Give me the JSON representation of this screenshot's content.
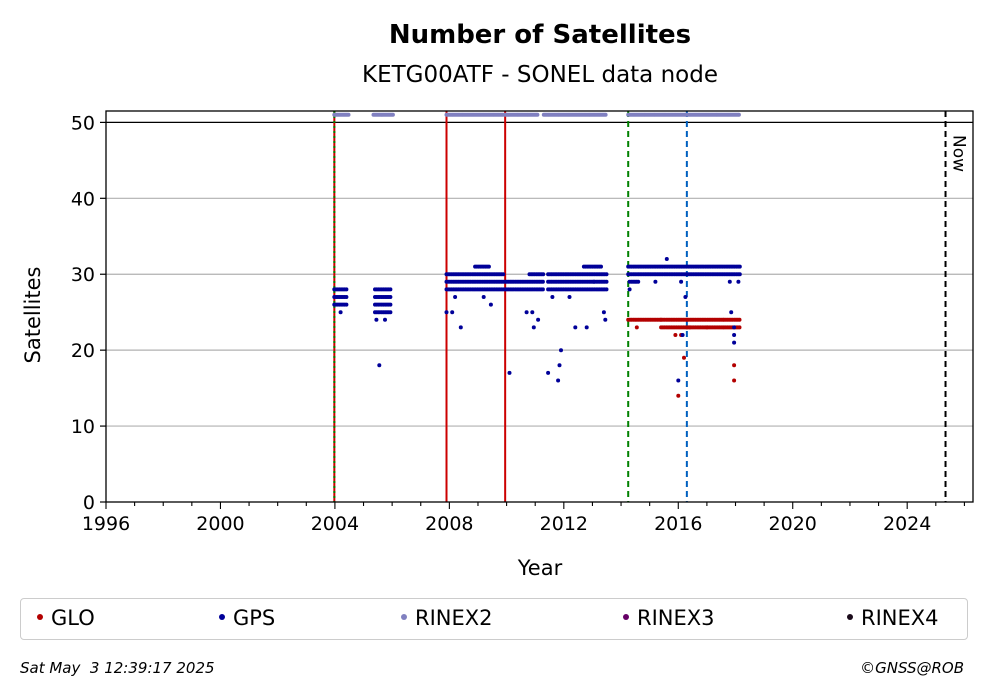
{
  "chart_data": {
    "type": "scatter",
    "title": "Number of Satellites",
    "subtitle": "KETG00ATF - SONEL data node",
    "xlabel": "Year",
    "ylabel": "Satellites",
    "xlim": [
      1996,
      2026.3
    ],
    "ylim": [
      0,
      51.5
    ],
    "xticks": [
      "1996",
      "2000",
      "2004",
      "2008",
      "2012",
      "2016",
      "2020",
      "2024"
    ],
    "yticks": [
      "0",
      "10",
      "20",
      "30",
      "40",
      "50"
    ],
    "grid": "horizontal",
    "now_label": "Now",
    "now_year": 2025.34,
    "vlines": [
      {
        "x": 2003.98,
        "color": "#cc0000",
        "style": "solid"
      },
      {
        "x": 2003.98,
        "color": "#008000",
        "style": "dotted"
      },
      {
        "x": 2007.9,
        "color": "#cc0000",
        "style": "solid"
      },
      {
        "x": 2009.95,
        "color": "#cc0000",
        "style": "solid"
      },
      {
        "x": 2014.25,
        "color": "#008000",
        "style": "dashed"
      },
      {
        "x": 2016.3,
        "color": "#0060c0",
        "style": "dashed"
      }
    ],
    "series": [
      {
        "name": "GLO",
        "color": "#b30000",
        "segments": [
          {
            "from": 2014.25,
            "to": 2015.4,
            "values": [
              24
            ]
          },
          {
            "from": 2015.4,
            "to": 2016.3,
            "values": [
              23,
              24
            ]
          },
          {
            "from": 2016.3,
            "to": 2017.6,
            "values": [
              24,
              23
            ]
          },
          {
            "from": 2017.6,
            "to": 2018.15,
            "values": [
              23,
              24
            ]
          }
        ],
        "points": [
          [
            2014.55,
            23
          ],
          [
            2015.9,
            22
          ],
          [
            2016.1,
            22
          ],
          [
            2016.2,
            19
          ],
          [
            2016.0,
            14
          ],
          [
            2017.95,
            18
          ],
          [
            2017.95,
            16
          ],
          [
            2016.4,
            23
          ],
          [
            2017.0,
            23
          ]
        ]
      },
      {
        "name": "GPS",
        "color": "#000099",
        "segments": [
          {
            "from": 2003.98,
            "to": 2004.45,
            "values": [
              26,
              27,
              28
            ]
          },
          {
            "from": 2005.4,
            "to": 2005.95,
            "values": [
              25,
              26,
              27,
              28
            ]
          },
          {
            "from": 2007.9,
            "to": 2009.9,
            "values": [
              28,
              29,
              30
            ]
          },
          {
            "from": 2008.9,
            "to": 2009.4,
            "values": [
              31
            ]
          },
          {
            "from": 2009.95,
            "to": 2011.3,
            "values": [
              28,
              29
            ]
          },
          {
            "from": 2010.8,
            "to": 2011.3,
            "values": [
              30
            ]
          },
          {
            "from": 2011.45,
            "to": 2013.5,
            "values": [
              28,
              29,
              30
            ]
          },
          {
            "from": 2012.7,
            "to": 2013.3,
            "values": [
              31
            ]
          },
          {
            "from": 2014.25,
            "to": 2018.15,
            "values": [
              30,
              31
            ]
          },
          {
            "from": 2014.3,
            "to": 2014.6,
            "values": [
              29
            ]
          }
        ],
        "points": [
          [
            2004.2,
            25
          ],
          [
            2005.45,
            24
          ],
          [
            2005.75,
            24
          ],
          [
            2005.55,
            18
          ],
          [
            2007.9,
            25
          ],
          [
            2008.1,
            25
          ],
          [
            2008.4,
            23
          ],
          [
            2008.2,
            27
          ],
          [
            2009.2,
            27
          ],
          [
            2009.45,
            26
          ],
          [
            2010.1,
            17
          ],
          [
            2010.7,
            25
          ],
          [
            2010.9,
            25
          ],
          [
            2010.95,
            23
          ],
          [
            2011.1,
            24
          ],
          [
            2011.45,
            17
          ],
          [
            2011.6,
            27
          ],
          [
            2011.8,
            16
          ],
          [
            2011.9,
            20
          ],
          [
            2011.85,
            18
          ],
          [
            2012.2,
            27
          ],
          [
            2012.4,
            23
          ],
          [
            2012.8,
            23
          ],
          [
            2013.05,
            29
          ],
          [
            2013.4,
            25
          ],
          [
            2013.45,
            24
          ],
          [
            2014.3,
            28
          ],
          [
            2016.0,
            16
          ],
          [
            2016.15,
            22
          ],
          [
            2016.25,
            27
          ],
          [
            2016.1,
            29
          ],
          [
            2017.85,
            25
          ],
          [
            2017.95,
            23
          ],
          [
            2017.95,
            22
          ],
          [
            2017.95,
            21
          ],
          [
            2017.8,
            29
          ],
          [
            2018.1,
            29
          ],
          [
            2015.6,
            32
          ],
          [
            2015.2,
            29
          ]
        ]
      },
      {
        "name": "RINEX2",
        "color": "#8080c0",
        "segments": [
          {
            "from": 2003.98,
            "to": 2004.5,
            "values": [
              51
            ]
          },
          {
            "from": 2005.35,
            "to": 2006.05,
            "values": [
              51
            ]
          },
          {
            "from": 2007.9,
            "to": 2009.9,
            "values": [
              51
            ]
          },
          {
            "from": 2009.95,
            "to": 2011.1,
            "values": [
              51
            ]
          },
          {
            "from": 2011.3,
            "to": 2013.5,
            "values": [
              51
            ]
          },
          {
            "from": 2014.25,
            "to": 2018.15,
            "values": [
              51
            ]
          }
        ],
        "points": []
      },
      {
        "name": "RINEX3",
        "color": "#660066",
        "segments": [],
        "points": []
      },
      {
        "name": "RINEX4",
        "color": "#1a0a1a",
        "segments": [],
        "points": []
      }
    ]
  },
  "footer": {
    "timestamp": "Sat May  3 12:39:17 2025",
    "credit": "©GNSS@ROB"
  }
}
